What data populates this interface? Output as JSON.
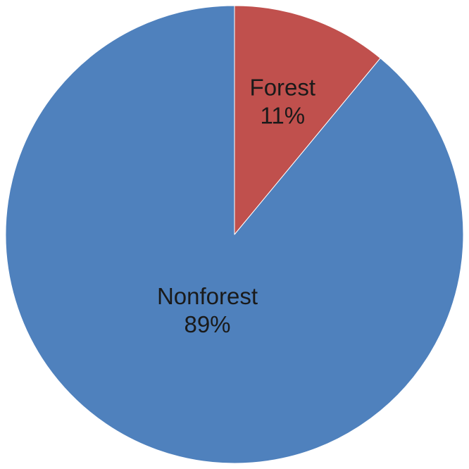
{
  "chart_data": {
    "type": "pie",
    "title": "",
    "categories": [
      "Nonforest",
      "Forest"
    ],
    "values": [
      89,
      11
    ],
    "value_labels": [
      "89%",
      "11%"
    ],
    "colors": [
      "#4F81BD",
      "#C0504D"
    ],
    "start_angle_deg": 0,
    "direction": "clockwise",
    "legend": "none"
  }
}
